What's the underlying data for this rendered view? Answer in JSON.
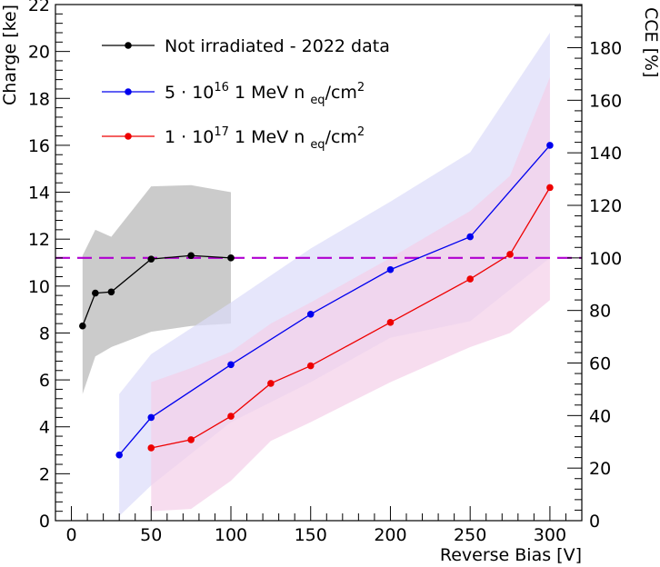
{
  "chart_data": {
    "type": "line",
    "xlabel": "Reverse Bias [V]",
    "ylabel": "Charge [ke]",
    "y2label": "CCE [%]",
    "xlim": [
      -10,
      320
    ],
    "ylim": [
      0,
      22
    ],
    "y2lim": [
      0,
      196.43
    ],
    "x_ticks": [
      "0",
      "50",
      "100",
      "150",
      "200",
      "250",
      "300"
    ],
    "y_ticks": [
      "0",
      "2",
      "4",
      "6",
      "8",
      "10",
      "12",
      "14",
      "16",
      "18",
      "20",
      "22"
    ],
    "y2_ticks": [
      "0",
      "20",
      "40",
      "60",
      "80",
      "100",
      "120",
      "140",
      "160",
      "180"
    ],
    "reference_line": {
      "y": 11.2,
      "y2": 100,
      "style": "dashed",
      "color": "#b000d0"
    },
    "legend": {
      "placement": "top-left",
      "entries": [
        {
          "label": "Not irradiated - 2022 data",
          "color": "#000000"
        },
        {
          "label": "5 · 10",
          "sup": "16",
          "mid": " 1 MeV n ",
          "sub": "eq",
          "tail": "/cm",
          "sup2": "2",
          "color": "#0000ee"
        },
        {
          "label": "1 · 10",
          "sup": "17",
          "mid": " 1 MeV n ",
          "sub": "eq",
          "tail": "/cm",
          "sup2": "2",
          "color": "#ee0000"
        }
      ]
    },
    "series": [
      {
        "name": "Not irradiated - 2022 data",
        "color": "#000000",
        "band_color": "#c8c8c8",
        "x": [
          7,
          15,
          25,
          50,
          75,
          100
        ],
        "y": [
          8.3,
          9.7,
          9.75,
          11.15,
          11.3,
          11.2
        ],
        "band_x": [
          7,
          15,
          25,
          50,
          75,
          100
        ],
        "band_upper": [
          11.3,
          12.4,
          12.1,
          14.25,
          14.3,
          14.0
        ],
        "band_lower": [
          5.4,
          7.0,
          7.4,
          8.05,
          8.3,
          8.4
        ]
      },
      {
        "name": "5 · 10^16 1 MeV n_eq/cm^2",
        "color": "#0000ee",
        "band_color": "#dcdcfa",
        "x": [
          30,
          50,
          100,
          150,
          200,
          250,
          300
        ],
        "y": [
          2.8,
          4.4,
          6.65,
          8.8,
          10.7,
          12.1,
          16.0
        ],
        "band_x": [
          30,
          50,
          100,
          150,
          200,
          250,
          300
        ],
        "band_upper": [
          5.4,
          7.1,
          9.3,
          11.6,
          13.6,
          15.7,
          20.8
        ],
        "band_lower": [
          0.2,
          1.5,
          4.2,
          5.9,
          7.8,
          8.5,
          11.2
        ]
      },
      {
        "name": "1 · 10^17 1 MeV n_eq/cm^2",
        "color": "#ee0000",
        "band_color": "#f4cfe8",
        "x": [
          50,
          75,
          100,
          125,
          150,
          200,
          250,
          275,
          300
        ],
        "y": [
          3.1,
          3.45,
          4.45,
          5.85,
          6.6,
          8.45,
          10.3,
          11.35,
          14.2
        ],
        "band_x": [
          50,
          75,
          100,
          125,
          150,
          200,
          250,
          275,
          300
        ],
        "band_upper": [
          5.9,
          6.5,
          7.2,
          8.4,
          9.3,
          11.2,
          13.2,
          14.7,
          18.9
        ],
        "band_lower": [
          0.4,
          0.5,
          1.7,
          3.4,
          4.2,
          5.9,
          7.4,
          8.0,
          9.4
        ]
      }
    ]
  }
}
